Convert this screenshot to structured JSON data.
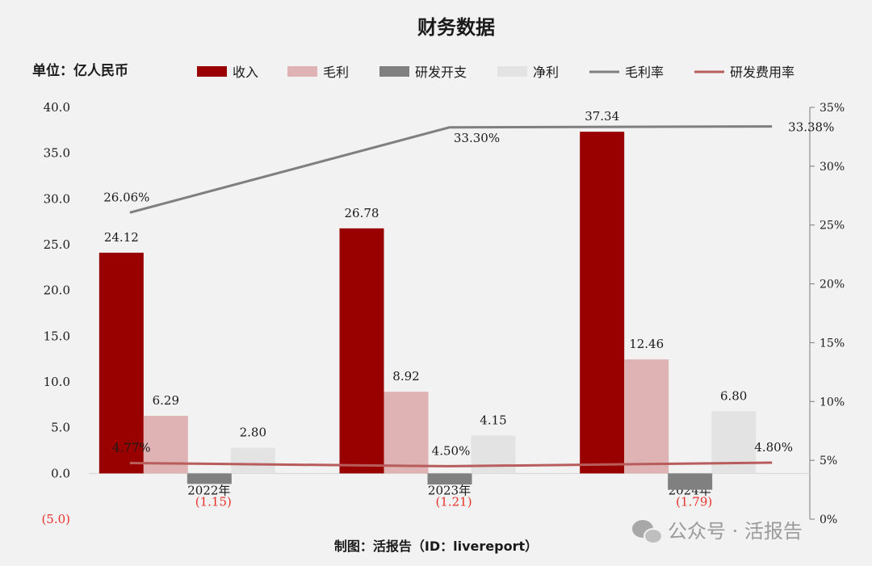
{
  "chart_data": {
    "type": "bar",
    "title": "财务数据",
    "unit_label": "单位：亿人民币",
    "categories": [
      "2022年",
      "2023年",
      "2024年"
    ],
    "series": [
      {
        "name": "收入",
        "kind": "bar",
        "axis": "left",
        "color": "#990000",
        "values": [
          24.12,
          26.78,
          37.34
        ],
        "labels": [
          "24.12",
          "26.78",
          "37.34"
        ]
      },
      {
        "name": "毛利",
        "kind": "bar",
        "axis": "left",
        "color": "#dfb3b3",
        "values": [
          6.29,
          8.92,
          12.46
        ],
        "labels": [
          "6.29",
          "8.92",
          "12.46"
        ]
      },
      {
        "name": "研发开支",
        "kind": "bar",
        "axis": "left",
        "color": "#808080",
        "values": [
          -1.15,
          -1.21,
          -1.79
        ],
        "labels": [
          "(1.15)",
          "(1.21)",
          "(1.79)"
        ]
      },
      {
        "name": "净利",
        "kind": "bar",
        "axis": "left",
        "color": "#e3e3e3",
        "values": [
          2.8,
          4.15,
          6.8
        ],
        "labels": [
          "2.80",
          "4.15",
          "6.80"
        ]
      },
      {
        "name": "毛利率",
        "kind": "line",
        "axis": "right",
        "color": "#7f7f7f",
        "values": [
          26.06,
          33.3,
          33.38
        ],
        "labels": [
          "26.06%",
          "33.30%",
          "33.38%"
        ]
      },
      {
        "name": "研发费用率",
        "kind": "line",
        "axis": "right",
        "color": "#b85c5c",
        "values": [
          4.77,
          4.5,
          4.8
        ],
        "labels": [
          "4.77%",
          "4.50%",
          "4.80%"
        ]
      }
    ],
    "ylim_left": [
      -5,
      40
    ],
    "yticks_left": [
      "40.0",
      "35.0",
      "30.0",
      "25.0",
      "20.0",
      "15.0",
      "10.0",
      "5.0",
      "0.0",
      "(5.0)"
    ],
    "ylim_right": [
      0,
      35
    ],
    "yticks_right": [
      "35%",
      "30%",
      "25%",
      "20%",
      "15%",
      "10%",
      "5%",
      "0%"
    ],
    "legend_position": "top",
    "grid": false
  },
  "footer": {
    "source": "制图：活报告（ID：livereport）",
    "watermark": "公众号 · 活报告"
  }
}
